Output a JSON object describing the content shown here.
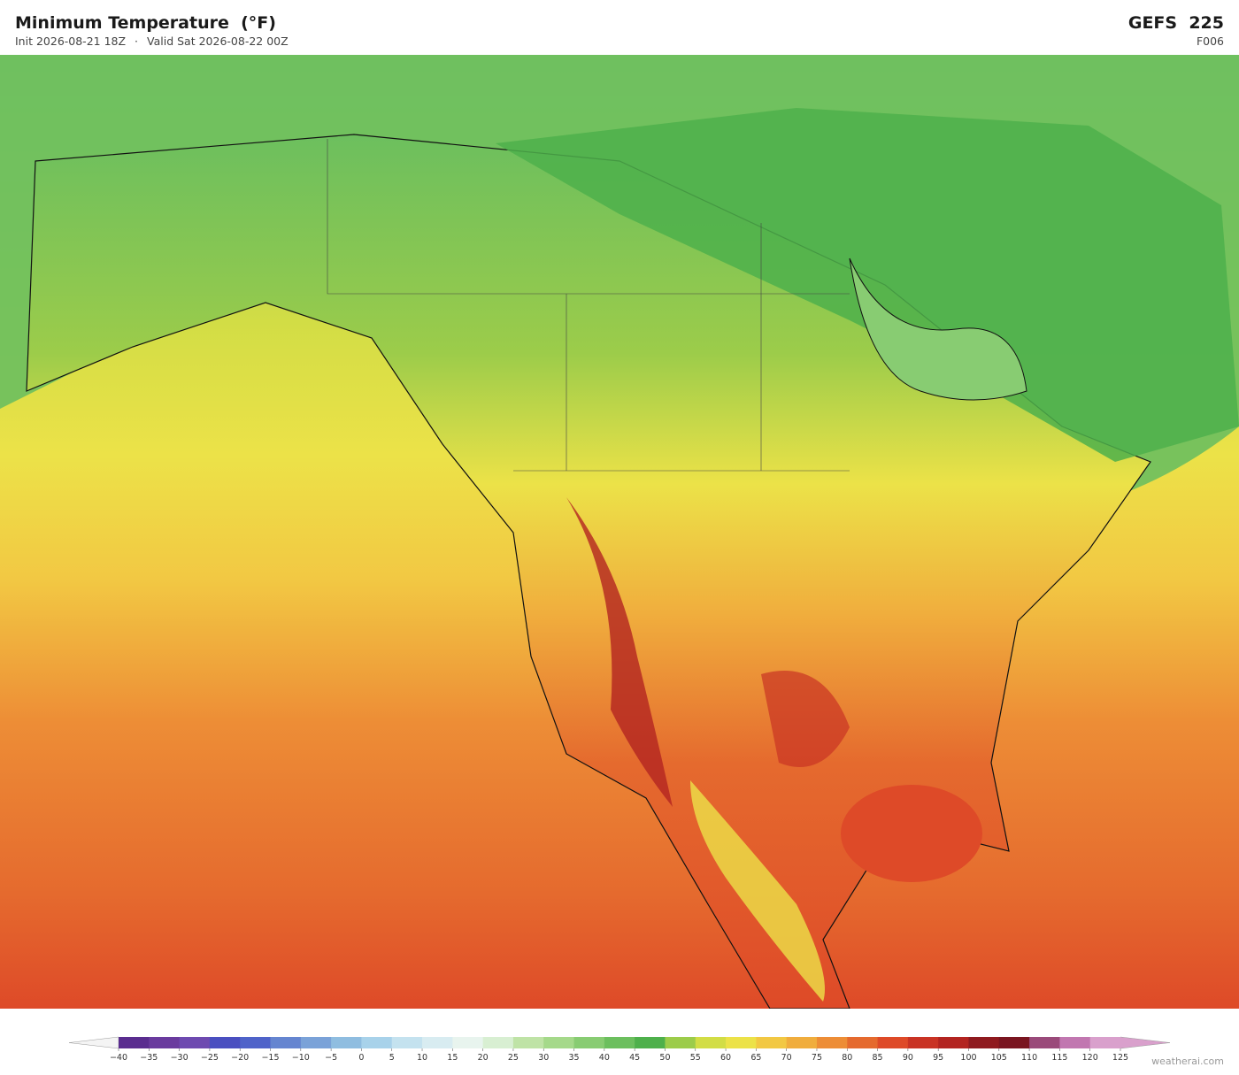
{
  "header": {
    "title": "Minimum Temperature  (°F)",
    "init": "Init 2026-08-21 18Z",
    "separator": "·",
    "valid": "Valid Sat 2026-08-22 00Z",
    "model": "GEFS  225",
    "forecast_hour": "F006"
  },
  "colorbar": {
    "ticks": [
      {
        "value": -40,
        "label": "−40"
      },
      {
        "value": -35,
        "label": "−35"
      },
      {
        "value": -30,
        "label": "−30"
      },
      {
        "value": -25,
        "label": "−25"
      },
      {
        "value": -20,
        "label": "−20"
      },
      {
        "value": -15,
        "label": "−15"
      },
      {
        "value": -10,
        "label": "−10"
      },
      {
        "value": -5,
        "label": "−5"
      },
      0,
      5,
      10,
      15,
      20,
      25,
      30,
      35,
      40,
      45,
      50,
      55,
      60,
      65,
      70,
      75,
      80,
      85,
      90,
      95,
      100,
      105,
      110,
      115,
      120,
      125
    ],
    "colors": [
      "#5a2d8f",
      "#6a3b9e",
      "#6e4ab0",
      "#4a4fc0",
      "#4f63c9",
      "#6585d0",
      "#7aa2d8",
      "#8fbde0",
      "#a8d2ea",
      "#c4e2ef",
      "#d8ecf1",
      "#e8f4ee",
      "#d8efd2",
      "#bfe3a6",
      "#a5d98a",
      "#88cc72",
      "#6cbf5e",
      "#4eb04b",
      "#9ccc4a",
      "#d2dd45",
      "#ece248",
      "#f2c843",
      "#f0ad3d",
      "#ed8d36",
      "#e56a2e",
      "#de4a28",
      "#c93324",
      "#b32420",
      "#8f1a1f",
      "#7a1520",
      "#9a4a7a",
      "#c177b0",
      "#d9a0cc"
    ],
    "under_color": "#f4f4f4",
    "over_color": "#d9a0cc"
  },
  "footer": {
    "watermark": "weatherai.com"
  }
}
